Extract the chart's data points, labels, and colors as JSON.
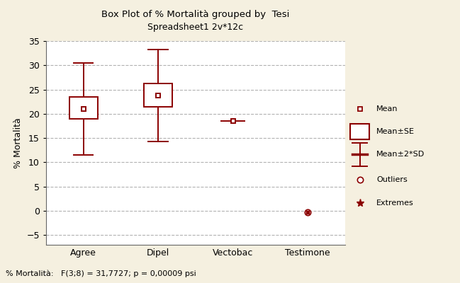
{
  "title_line1": "Box Plot of % Mortalità grouped by  Tesi",
  "title_line2": "Spreadsheet1 2v*12c",
  "ylabel": "% Mortalità",
  "categories": [
    "Agree",
    "Dipel",
    "Vectobac",
    "Testimone"
  ],
  "ylim": [
    -7,
    35
  ],
  "yticks": [
    -5,
    0,
    5,
    10,
    15,
    20,
    25,
    30,
    35
  ],
  "background_color": "#f5f0e0",
  "plot_bg_color": "#ffffff",
  "color": "#8b0000",
  "groups": {
    "Agree": {
      "mean": 21.0,
      "se_low": 19.0,
      "se_high": 23.5,
      "sd2_low": 11.5,
      "sd2_high": 30.5,
      "has_box": true,
      "outlier": null
    },
    "Dipel": {
      "mean": 23.8,
      "se_low": 21.5,
      "se_high": 26.2,
      "sd2_low": 14.3,
      "sd2_high": 33.3,
      "has_box": true,
      "outlier": null
    },
    "Vectobac": {
      "mean": 18.5,
      "se_low": 18.5,
      "se_high": 18.5,
      "sd2_low": 18.5,
      "sd2_high": 18.5,
      "has_box": false,
      "outlier": null
    },
    "Testimone": {
      "mean": -0.3,
      "se_low": -0.3,
      "se_high": -0.3,
      "sd2_low": -0.3,
      "sd2_high": -0.3,
      "has_box": false,
      "outlier": -0.3
    }
  },
  "footer_text": "% Mortalità:   F(3;8) = 31,7727; p = 0,00009 psi"
}
